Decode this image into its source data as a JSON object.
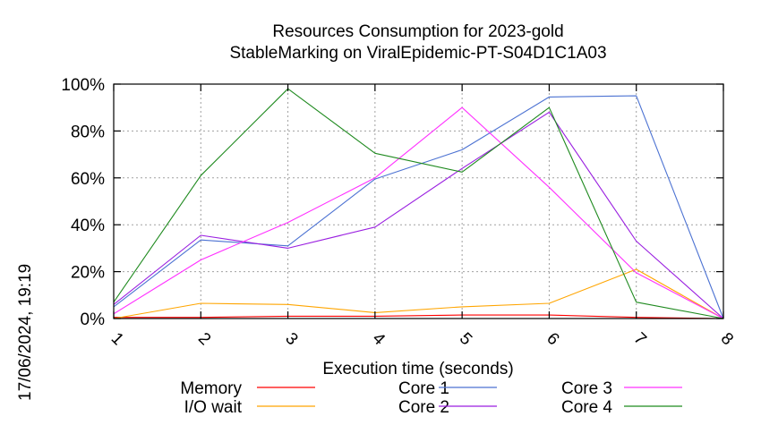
{
  "chart_data": {
    "type": "line",
    "title": "Resources Consumption for 2023-gold",
    "subtitle": "StableMarking on ViralEpidemic-PT-S04D1C1A03",
    "xlabel": "Execution time (seconds)",
    "ylabel": "",
    "timestamp": "17/06/2024, 19:19",
    "x": [
      1,
      2,
      3,
      4,
      5,
      6,
      7,
      8
    ],
    "xticks": [
      "1",
      "2",
      "3",
      "4",
      "5",
      "6",
      "7",
      "8"
    ],
    "xlim": [
      1,
      8
    ],
    "ylim": [
      0,
      100
    ],
    "yticks": [
      0,
      20,
      40,
      60,
      80,
      100
    ],
    "ytick_labels": [
      "0%",
      "20%",
      "40%",
      "60%",
      "80%",
      "100%"
    ],
    "grid": true,
    "legend_position": "bottom",
    "series": [
      {
        "name": "Memory",
        "color": "#ff0000",
        "values": [
          0.5,
          0.5,
          1,
          1,
          1.5,
          1.5,
          0.5,
          0
        ]
      },
      {
        "name": "I/O wait",
        "color": "#ffa500",
        "values": [
          0,
          6.5,
          6,
          2.5,
          5,
          6.5,
          21,
          0
        ]
      },
      {
        "name": "Core 1",
        "color": "#4c72d2",
        "values": [
          5,
          33.5,
          31,
          59.5,
          72,
          94.5,
          95,
          0
        ]
      },
      {
        "name": "Core 2",
        "color": "#9a1fe0",
        "values": [
          6,
          35.5,
          30,
          39,
          64,
          88,
          33,
          0
        ]
      },
      {
        "name": "Core 3",
        "color": "#ff30ff",
        "values": [
          2,
          25,
          41,
          60,
          90,
          56,
          19.5,
          0
        ]
      },
      {
        "name": "Core 4",
        "color": "#1f8a1f",
        "values": [
          7,
          61,
          98,
          70.5,
          62.5,
          90,
          7,
          0
        ]
      }
    ]
  }
}
